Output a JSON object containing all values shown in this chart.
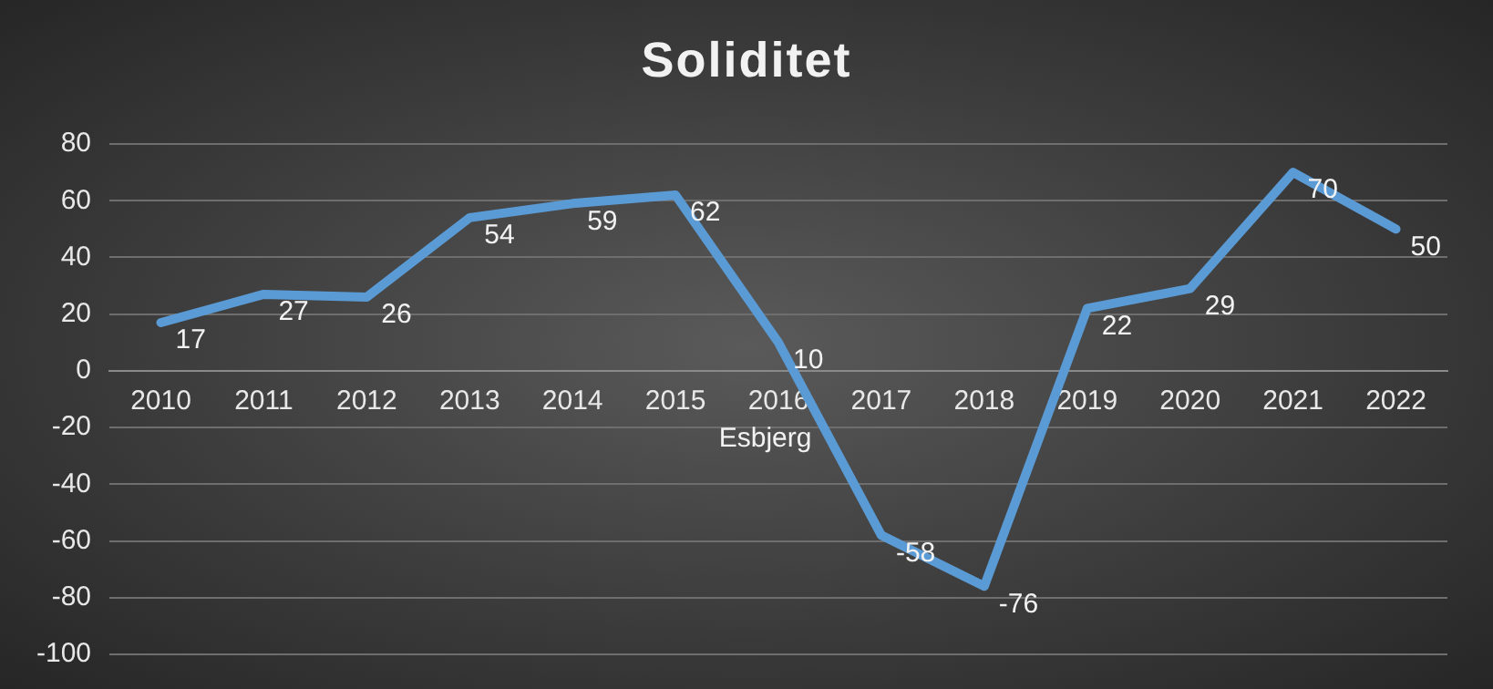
{
  "chart_data": {
    "type": "line",
    "title": "Soliditet",
    "categories": [
      "2010",
      "2011",
      "2012",
      "2013",
      "2014",
      "2015",
      "2016",
      "2017",
      "2018",
      "2019",
      "2020",
      "2021",
      "2022"
    ],
    "series": [
      {
        "name": "Esbjerg",
        "color": "#5b9bd5",
        "values": [
          17,
          27,
          26,
          54,
          59,
          62,
          10,
          -58,
          -76,
          22,
          29,
          70,
          50
        ]
      }
    ],
    "ylim": [
      -100,
      80
    ],
    "yticks": [
      -100,
      -80,
      -60,
      -40,
      -20,
      0,
      20,
      40,
      60,
      80
    ],
    "grid": "y",
    "legend": false,
    "marker": "none",
    "line_style": "solid",
    "data_labels": true
  }
}
